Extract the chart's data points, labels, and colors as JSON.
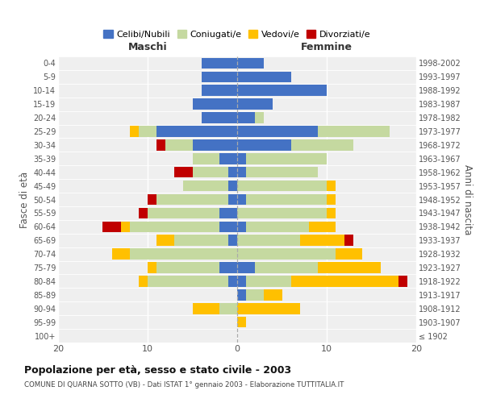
{
  "age_groups": [
    "100+",
    "95-99",
    "90-94",
    "85-89",
    "80-84",
    "75-79",
    "70-74",
    "65-69",
    "60-64",
    "55-59",
    "50-54",
    "45-49",
    "40-44",
    "35-39",
    "30-34",
    "25-29",
    "20-24",
    "15-19",
    "10-14",
    "5-9",
    "0-4"
  ],
  "birth_years": [
    "≤ 1902",
    "1903-1907",
    "1908-1912",
    "1913-1917",
    "1918-1922",
    "1923-1927",
    "1928-1932",
    "1933-1937",
    "1938-1942",
    "1943-1947",
    "1948-1952",
    "1953-1957",
    "1958-1962",
    "1963-1967",
    "1968-1972",
    "1973-1977",
    "1978-1982",
    "1983-1987",
    "1988-1992",
    "1993-1997",
    "1998-2002"
  ],
  "male": {
    "celibe": [
      0,
      0,
      0,
      0,
      1,
      2,
      0,
      1,
      2,
      2,
      1,
      1,
      1,
      2,
      5,
      9,
      4,
      5,
      4,
      4,
      4
    ],
    "coniugato": [
      0,
      0,
      2,
      0,
      9,
      7,
      12,
      6,
      10,
      8,
      8,
      5,
      4,
      3,
      3,
      2,
      0,
      0,
      0,
      0,
      0
    ],
    "vedovo": [
      0,
      0,
      3,
      0,
      1,
      1,
      2,
      2,
      1,
      0,
      0,
      0,
      0,
      0,
      0,
      1,
      0,
      0,
      0,
      0,
      0
    ],
    "divorziato": [
      0,
      0,
      0,
      0,
      0,
      0,
      0,
      0,
      2,
      1,
      1,
      0,
      2,
      0,
      1,
      0,
      0,
      0,
      0,
      0,
      0
    ]
  },
  "female": {
    "nubile": [
      0,
      0,
      0,
      1,
      1,
      2,
      0,
      0,
      1,
      0,
      1,
      0,
      1,
      1,
      6,
      9,
      2,
      4,
      10,
      6,
      3
    ],
    "coniugata": [
      0,
      0,
      0,
      2,
      5,
      7,
      11,
      7,
      7,
      10,
      9,
      10,
      8,
      9,
      7,
      8,
      1,
      0,
      0,
      0,
      0
    ],
    "vedova": [
      0,
      1,
      7,
      2,
      12,
      7,
      3,
      5,
      3,
      1,
      1,
      1,
      0,
      0,
      0,
      0,
      0,
      0,
      0,
      0,
      0
    ],
    "divorziata": [
      0,
      0,
      0,
      0,
      1,
      0,
      0,
      1,
      0,
      0,
      0,
      0,
      0,
      0,
      0,
      0,
      0,
      0,
      0,
      0,
      0
    ]
  },
  "colors": {
    "celibe": "#4472C4",
    "coniugato": "#C5D9A0",
    "vedovo": "#FFC000",
    "divorziato": "#C00000"
  },
  "title": "Popolazione per età, sesso e stato civile - 2003",
  "subtitle": "COMUNE DI QUARNA SOTTO (VB) - Dati ISTAT 1° gennaio 2003 - Elaborazione TUTTITALIA.IT",
  "xlabel_left": "Maschi",
  "xlabel_right": "Femmine",
  "ylabel_left": "Fasce di età",
  "ylabel_right": "Anni di nascita",
  "xlim": 20,
  "legend_labels": [
    "Celibi/Nubili",
    "Coniugati/e",
    "Vedovi/e",
    "Divorziati/e"
  ],
  "background_color": "#ffffff",
  "ax_background": "#efefef"
}
